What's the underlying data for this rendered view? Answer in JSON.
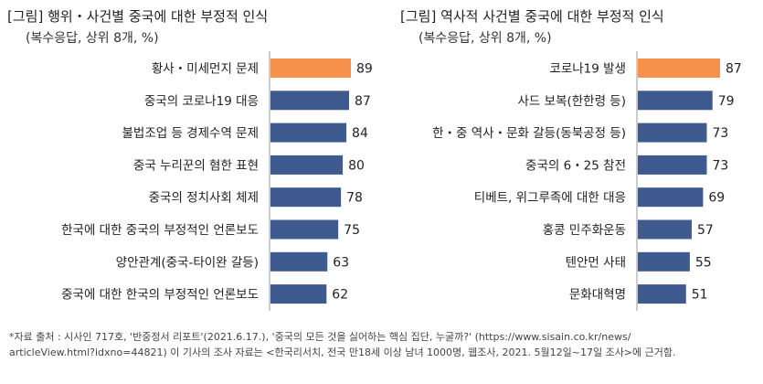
{
  "colors": {
    "highlight": "#F5914A",
    "bar": "#3E5A8F"
  },
  "chart_data": [
    {
      "type": "bar",
      "orientation": "horizontal",
      "title": "[그림] 행위・사건별 중국에 대한 부정적 인식",
      "subtitle": "(복수응답, 상위 8개, %)",
      "categories": [
        "황사・미세먼지 문제",
        "중국의 코로나19 대응",
        "불법조업 등 경제수역 문제",
        "중국 누리꾼의 혐한 표현",
        "중국의 정치사회 체제",
        "한국에 대한 중국의 부정적인 언론보도",
        "양안관계(중국-타이완 갈등)",
        "중국에 대한 한국의 부정적인 언론보도"
      ],
      "values": [
        89,
        87,
        84,
        80,
        78,
        75,
        63,
        62
      ],
      "highlight_index": 0,
      "xlim": [
        0,
        100
      ]
    },
    {
      "type": "bar",
      "orientation": "horizontal",
      "title": "[그림] 역사적 사건별 중국에 대한 부정적 인식",
      "subtitle": "(복수응답, 상위 8개, %)",
      "categories": [
        "코로나19 발생",
        "사드 보복(한한령 등)",
        "한・중 역사・문화 갈등(동북공정 등)",
        "중국의 6・25 참전",
        "티베트, 위그루족에 대한 대응",
        "홍콩 민주화운동",
        "텐안먼 사태",
        "문화대혁명"
      ],
      "values": [
        87,
        79,
        73,
        73,
        69,
        57,
        55,
        51
      ],
      "highlight_index": 0,
      "xlim": [
        0,
        100
      ]
    }
  ],
  "footnote": {
    "line1": "*자료 출처 : 시사인 717호, '반중정서 리포트'(2021.6.17.), '중국의 모든 것을 싫어하는 핵심 집단, 누굴까?' (https://www.sisain.co.kr/news/",
    "line2": "articleView.html?idxno=44821) 이 기사의 조사 자료는 <한국리서치, 전국 만18세 이상 남녀 1000명, 웹조사, 2021. 5월12일~17일 조사>에 근거함."
  }
}
